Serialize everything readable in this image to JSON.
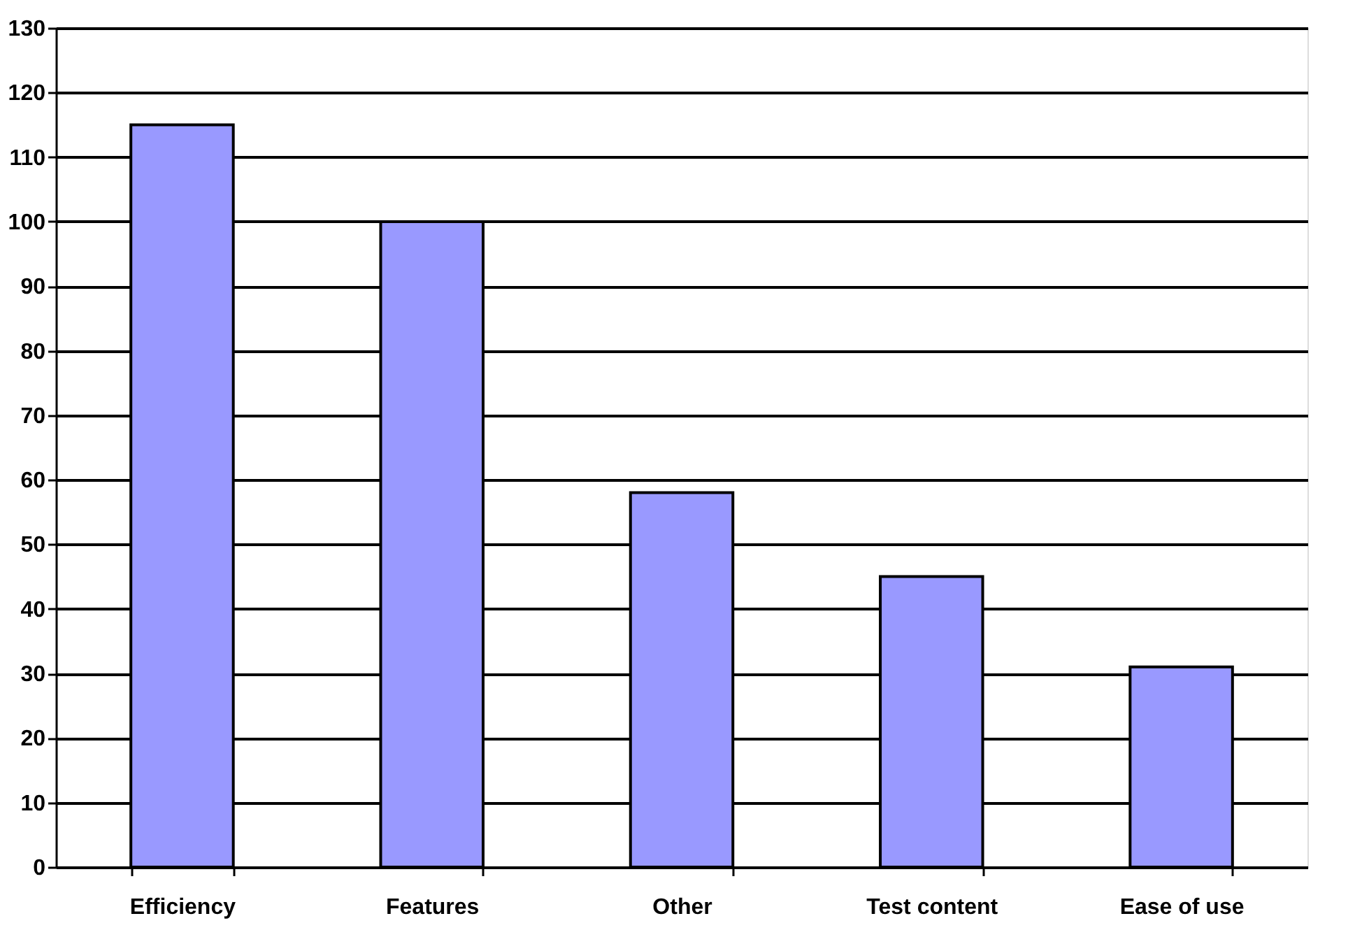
{
  "chart_data": {
    "type": "bar",
    "categories": [
      "Efficiency",
      "Features",
      "Other",
      "Test content",
      "Ease of use"
    ],
    "values": [
      115,
      100,
      58,
      45,
      31
    ],
    "color": "#9999ff",
    "ylim": [
      0,
      130
    ],
    "yticks": [
      0,
      10,
      20,
      30,
      40,
      50,
      60,
      70,
      80,
      90,
      100,
      110,
      120,
      130
    ],
    "grid": "y"
  }
}
